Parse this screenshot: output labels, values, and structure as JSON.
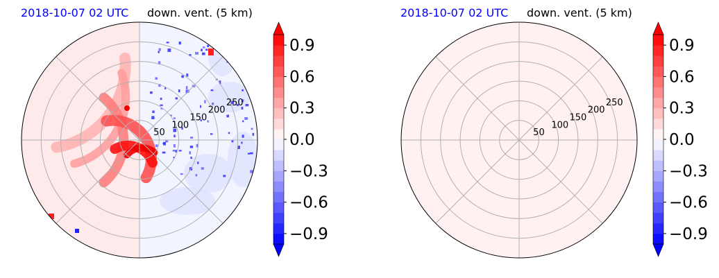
{
  "chart_data": [
    {
      "type": "polar-contour",
      "title_left": "2018-10-07 02 UTC",
      "title_right": "down. vent. (5 km)",
      "title_left_color": "#0000ff",
      "radial_ticks": [
        50,
        100,
        150,
        200,
        250
      ],
      "radial_range": [
        0,
        300
      ],
      "angular_grid_deg": [
        0,
        45,
        90,
        135,
        180,
        225,
        270,
        315
      ],
      "grid": true,
      "colorbar": {
        "cmap": "bwr",
        "range": [
          -1.0,
          1.0
        ],
        "extend": "both",
        "ticks": [
          0.9,
          0.6,
          0.3,
          0.0,
          -0.3,
          -0.6,
          -0.9
        ],
        "tick_labels": [
          "0.9",
          "0.6",
          "0.3",
          "0.0",
          "−0.3",
          "−0.6",
          "−0.9"
        ]
      },
      "field_description": "strong positive (red) arc south-west of center, weak negative (blue) speckles north-east"
    },
    {
      "type": "polar-contour",
      "title_left": "2018-10-07 02 UTC",
      "title_right": "down. vent. (5 km)",
      "title_left_color": "#0000ff",
      "radial_ticks": [
        50,
        100,
        150,
        200,
        250
      ],
      "radial_range": [
        0,
        300
      ],
      "angular_grid_deg": [
        0,
        45,
        90,
        135,
        180,
        225,
        270,
        315
      ],
      "grid": true,
      "uniform_value": 0.02,
      "colorbar": {
        "cmap": "bwr",
        "range": [
          -1.0,
          1.0
        ],
        "extend": "both",
        "ticks": [
          0.9,
          0.6,
          0.3,
          0.0,
          -0.3,
          -0.6,
          -0.9
        ],
        "tick_labels": [
          "0.9",
          "0.6",
          "0.3",
          "0.0",
          "−0.3",
          "−0.6",
          "−0.9"
        ]
      }
    }
  ]
}
